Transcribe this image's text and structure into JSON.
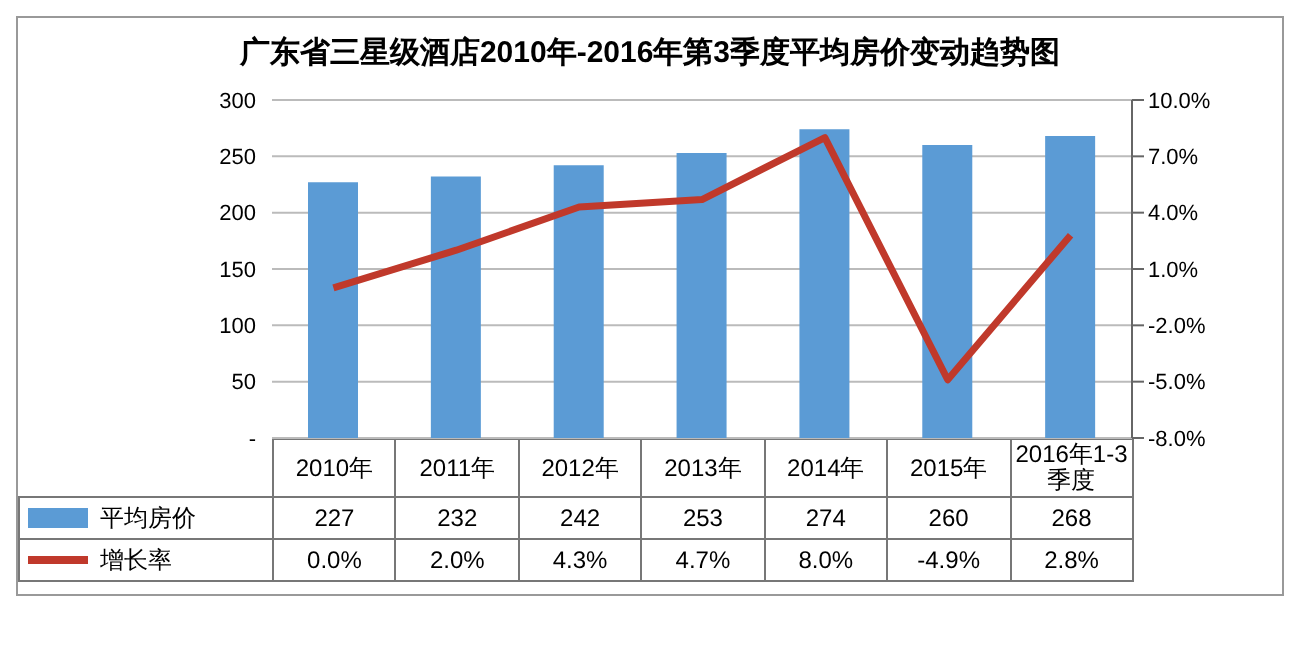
{
  "chart_data": {
    "type": "bar",
    "title": "广东省三星级酒店2010年-2016年第3季度平均房价变动趋势图",
    "categories": [
      "2010年",
      "2011年",
      "2012年",
      "2013年",
      "2014年",
      "2015年",
      "2016年1-3季度"
    ],
    "series": [
      {
        "name": "平均房价",
        "color": "#5b9bd5",
        "values": [
          227,
          232,
          242,
          253,
          274,
          260,
          268
        ],
        "value_labels": [
          "227",
          "232",
          "242",
          "253",
          "274",
          "260",
          "268"
        ]
      },
      {
        "name": "增长率",
        "type": "line",
        "axis": "y2",
        "color": "#c0392b",
        "values": [
          0.0,
          2.0,
          4.3,
          4.7,
          8.0,
          -4.9,
          2.8
        ],
        "value_labels": [
          "0.0%",
          "2.0%",
          "4.3%",
          "4.7%",
          "8.0%",
          "-4.9%",
          "2.8%"
        ]
      }
    ],
    "ylim": [
      0,
      300
    ],
    "yticks": [
      {
        "value": 0,
        "label": "-"
      },
      50,
      100,
      150,
      200,
      250,
      300
    ],
    "y2lim": [
      -8,
      10
    ],
    "y2ticks": [
      {
        "value": 10,
        "label": "10.0%"
      },
      {
        "value": 7,
        "label": "7.0%"
      },
      {
        "value": 4,
        "label": "4.0%"
      },
      {
        "value": 1,
        "label": "1.0%"
      },
      {
        "value": -2,
        "label": "-2.0%"
      },
      {
        "value": -5,
        "label": "-5.0%"
      },
      {
        "value": -8,
        "label": "-8.0%"
      }
    ],
    "grid": "y",
    "legend": "bottom",
    "marker": "none",
    "line_style": "solid"
  }
}
